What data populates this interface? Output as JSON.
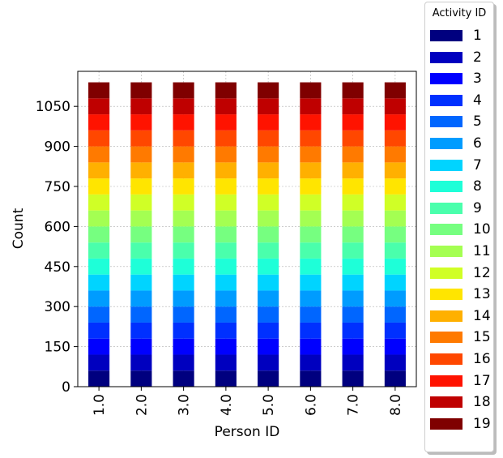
{
  "chart_data": {
    "type": "bar",
    "stacked": true,
    "title": "",
    "xlabel": "Person ID",
    "ylabel": "Count",
    "categories": [
      "1.0",
      "2.0",
      "3.0",
      "4.0",
      "5.0",
      "6.0",
      "7.0",
      "8.0"
    ],
    "ylim": [
      0,
      1140
    ],
    "yticks": [
      "0",
      "150",
      "300",
      "450",
      "600",
      "750",
      "900",
      "1050"
    ],
    "grid": true,
    "legend": {
      "title": "Activity ID",
      "placement": "outside-right"
    },
    "series": [
      {
        "name": "1",
        "color": "#00007f",
        "values": [
          60,
          60,
          60,
          60,
          60,
          60,
          60,
          60
        ]
      },
      {
        "name": "2",
        "color": "#0000bf",
        "values": [
          60,
          60,
          60,
          60,
          60,
          60,
          60,
          60
        ]
      },
      {
        "name": "3",
        "color": "#0000ff",
        "values": [
          60,
          60,
          60,
          60,
          60,
          60,
          60,
          60
        ]
      },
      {
        "name": "4",
        "color": "#0030ff",
        "values": [
          60,
          60,
          60,
          60,
          60,
          60,
          60,
          60
        ]
      },
      {
        "name": "5",
        "color": "#0066ff",
        "values": [
          60,
          60,
          60,
          60,
          60,
          60,
          60,
          60
        ]
      },
      {
        "name": "6",
        "color": "#009cff",
        "values": [
          60,
          60,
          60,
          60,
          60,
          60,
          60,
          60
        ]
      },
      {
        "name": "7",
        "color": "#00d4ff",
        "values": [
          60,
          60,
          60,
          60,
          60,
          60,
          60,
          60
        ]
      },
      {
        "name": "8",
        "color": "#1effd8",
        "values": [
          60,
          60,
          60,
          60,
          60,
          60,
          60,
          60
        ]
      },
      {
        "name": "9",
        "color": "#4affac",
        "values": [
          60,
          60,
          60,
          60,
          60,
          60,
          60,
          60
        ]
      },
      {
        "name": "10",
        "color": "#76ff80",
        "values": [
          60,
          60,
          60,
          60,
          60,
          60,
          60,
          60
        ]
      },
      {
        "name": "11",
        "color": "#a4ff52",
        "values": [
          60,
          60,
          60,
          60,
          60,
          60,
          60,
          60
        ]
      },
      {
        "name": "12",
        "color": "#d0ff26",
        "values": [
          60,
          60,
          60,
          60,
          60,
          60,
          60,
          60
        ]
      },
      {
        "name": "13",
        "color": "#ffe500",
        "values": [
          60,
          60,
          60,
          60,
          60,
          60,
          60,
          60
        ]
      },
      {
        "name": "14",
        "color": "#ffb000",
        "values": [
          60,
          60,
          60,
          60,
          60,
          60,
          60,
          60
        ]
      },
      {
        "name": "15",
        "color": "#ff7a00",
        "values": [
          60,
          60,
          60,
          60,
          60,
          60,
          60,
          60
        ]
      },
      {
        "name": "16",
        "color": "#ff4700",
        "values": [
          60,
          60,
          60,
          60,
          60,
          60,
          60,
          60
        ]
      },
      {
        "name": "17",
        "color": "#ff1300",
        "values": [
          60,
          60,
          60,
          60,
          60,
          60,
          60,
          60
        ]
      },
      {
        "name": "18",
        "color": "#bf0000",
        "values": [
          60,
          60,
          60,
          60,
          60,
          60,
          60,
          60
        ]
      },
      {
        "name": "19",
        "color": "#7f0000",
        "values": [
          60,
          60,
          60,
          60,
          60,
          60,
          60,
          60
        ]
      }
    ]
  }
}
